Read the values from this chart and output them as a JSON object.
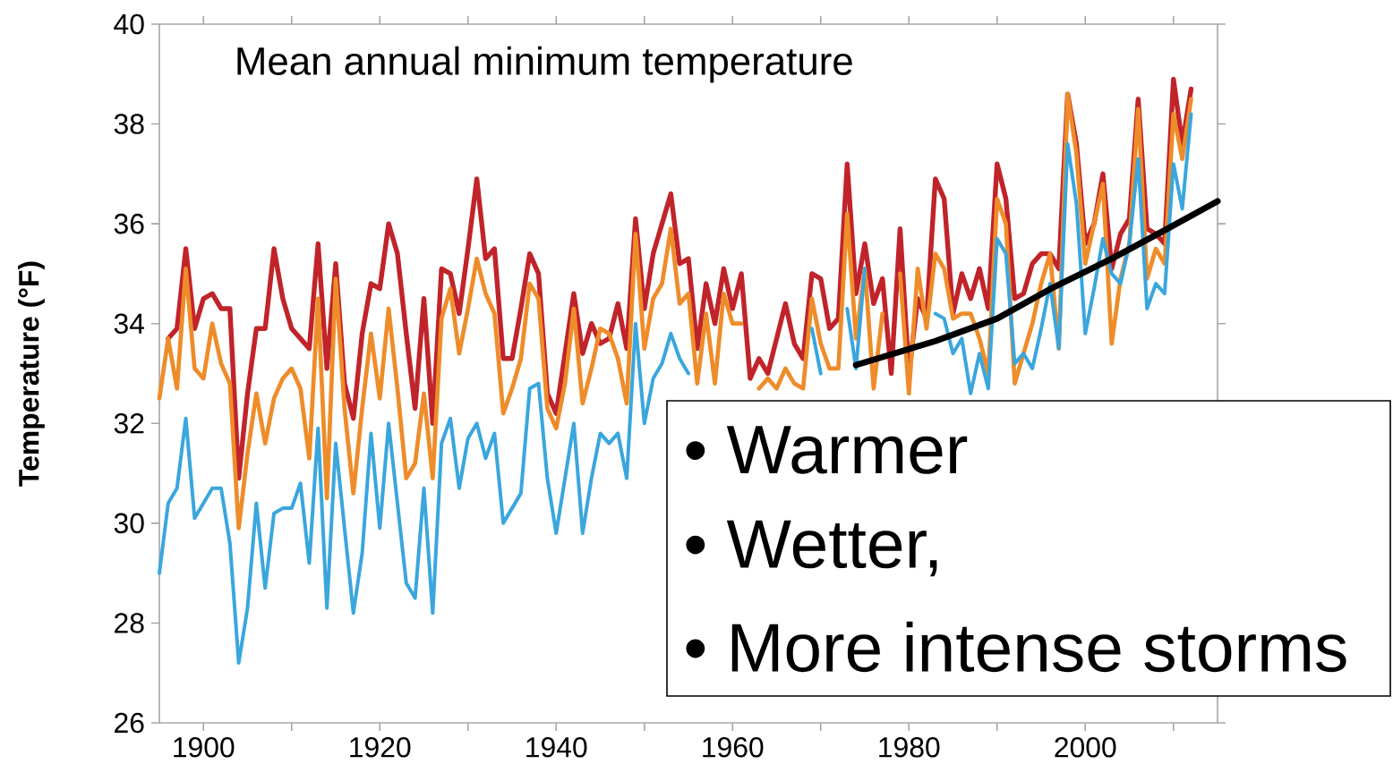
{
  "chart_data": {
    "type": "line",
    "title": "Mean annual minimum temperature",
    "ylabel": "Temperature (°F)",
    "annotations": [
      "• Warmer",
      "• Wetter,",
      "• More intense storms"
    ],
    "x": [
      1895,
      1896,
      1897,
      1898,
      1899,
      1900,
      1901,
      1902,
      1903,
      1904,
      1905,
      1906,
      1907,
      1908,
      1909,
      1910,
      1911,
      1912,
      1913,
      1914,
      1915,
      1916,
      1917,
      1918,
      1919,
      1920,
      1921,
      1922,
      1923,
      1924,
      1925,
      1926,
      1927,
      1928,
      1929,
      1930,
      1931,
      1932,
      1933,
      1934,
      1935,
      1936,
      1937,
      1938,
      1939,
      1940,
      1941,
      1942,
      1943,
      1944,
      1945,
      1946,
      1947,
      1948,
      1949,
      1950,
      1951,
      1952,
      1953,
      1954,
      1955,
      1956,
      1957,
      1958,
      1959,
      1960,
      1961,
      1962,
      1963,
      1964,
      1965,
      1966,
      1967,
      1968,
      1969,
      1970,
      1971,
      1972,
      1973,
      1974,
      1975,
      1976,
      1977,
      1978,
      1979,
      1980,
      1981,
      1982,
      1983,
      1984,
      1985,
      1986,
      1987,
      1988,
      1989,
      1990,
      1991,
      1992,
      1993,
      1994,
      1995,
      1996,
      1997,
      1998,
      1999,
      2000,
      2001,
      2002,
      2003,
      2004,
      2005,
      2006,
      2007,
      2008,
      2009,
      2010,
      2011,
      2012
    ],
    "series": [
      {
        "color": "#c0242a",
        "values": [
          null,
          33.7,
          33.9,
          35.5,
          33.9,
          34.5,
          34.6,
          34.3,
          34.3,
          30.9,
          32.6,
          33.9,
          33.9,
          35.5,
          34.5,
          33.9,
          33.7,
          33.5,
          35.6,
          33.1,
          35.2,
          32.8,
          32.1,
          33.8,
          34.8,
          34.7,
          36.0,
          35.4,
          33.8,
          32.3,
          34.5,
          32.0,
          35.1,
          35.0,
          34.2,
          35.5,
          36.9,
          35.3,
          35.5,
          33.3,
          33.3,
          34.3,
          35.4,
          35.0,
          32.6,
          32.2,
          33.4,
          34.6,
          33.4,
          34.0,
          33.6,
          33.7,
          34.4,
          33.5,
          36.1,
          34.3,
          35.4,
          36.0,
          36.6,
          35.2,
          35.3,
          33.5,
          34.8,
          34.0,
          35.1,
          34.3,
          35.0,
          32.9,
          33.3,
          33.0,
          33.7,
          34.4,
          33.6,
          33.3,
          35.0,
          34.9,
          33.9,
          34.1,
          37.2,
          34.6,
          35.6,
          34.4,
          34.9,
          33.0,
          35.9,
          33.0,
          34.5,
          34.1,
          36.9,
          36.5,
          34.2,
          35.0,
          34.5,
          35.1,
          34.3,
          37.2,
          36.5,
          34.5,
          34.6,
          35.2,
          35.4,
          35.4,
          35.1,
          38.6,
          37.6,
          35.6,
          36.0,
          37.0,
          35.1,
          35.8,
          36.1,
          38.5,
          35.9,
          35.8,
          35.6,
          38.9,
          37.6,
          38.7
        ]
      },
      {
        "color": "#ee8c2a",
        "values": [
          32.5,
          33.7,
          32.7,
          35.1,
          33.1,
          32.9,
          34.0,
          33.2,
          32.8,
          29.9,
          31.4,
          32.6,
          31.6,
          32.5,
          32.9,
          33.1,
          32.7,
          31.3,
          34.5,
          30.5,
          34.9,
          32.3,
          30.6,
          32.3,
          33.8,
          32.5,
          34.3,
          32.7,
          30.9,
          31.2,
          32.6,
          30.9,
          34.1,
          34.7,
          33.4,
          34.3,
          35.3,
          34.6,
          34.2,
          32.2,
          32.7,
          33.3,
          34.8,
          34.5,
          32.3,
          31.9,
          32.8,
          34.3,
          32.4,
          33.1,
          33.9,
          33.8,
          33.3,
          32.4,
          35.8,
          33.5,
          34.5,
          34.8,
          35.9,
          34.4,
          34.6,
          32.8,
          34.2,
          32.8,
          34.6,
          34.0,
          34.0,
          null,
          32.7,
          32.9,
          32.7,
          33.1,
          32.8,
          32.7,
          34.5,
          33.6,
          33.1,
          33.1,
          36.2,
          33.7,
          35.1,
          32.7,
          34.2,
          null,
          35.0,
          32.6,
          35.1,
          33.9,
          35.4,
          35.1,
          34.1,
          34.2,
          34.2,
          33.7,
          33.0,
          36.5,
          36.0,
          32.8,
          33.4,
          34.0,
          34.8,
          35.4,
          33.5,
          38.6,
          37.4,
          35.2,
          36.0,
          36.8,
          33.6,
          34.9,
          35.6,
          38.3,
          34.9,
          35.5,
          35.2,
          38.2,
          37.3,
          38.5
        ]
      },
      {
        "color": "#3aa6dd",
        "values": [
          29.0,
          30.4,
          30.7,
          32.1,
          30.1,
          30.4,
          30.7,
          30.7,
          29.6,
          27.2,
          28.3,
          30.4,
          28.7,
          30.2,
          30.3,
          30.3,
          30.8,
          29.2,
          31.9,
          28.3,
          31.6,
          29.9,
          28.2,
          29.4,
          31.8,
          29.9,
          32.0,
          30.4,
          28.8,
          28.5,
          30.7,
          28.2,
          31.6,
          32.1,
          30.7,
          31.7,
          32.0,
          31.3,
          31.8,
          30.0,
          30.3,
          30.6,
          32.7,
          32.8,
          30.9,
          29.8,
          30.9,
          32.0,
          29.8,
          30.9,
          31.8,
          31.6,
          31.8,
          30.9,
          34.0,
          32.0,
          32.9,
          33.2,
          33.8,
          33.3,
          33.0,
          null,
          null,
          null,
          null,
          null,
          null,
          null,
          null,
          null,
          null,
          null,
          null,
          null,
          33.9,
          33.0,
          null,
          null,
          34.3,
          33.1,
          35.1,
          null,
          null,
          null,
          null,
          null,
          null,
          null,
          34.2,
          34.1,
          33.4,
          33.7,
          32.6,
          33.4,
          32.7,
          35.7,
          35.4,
          33.2,
          33.4,
          33.1,
          33.9,
          34.8,
          33.5,
          37.6,
          36.4,
          33.8,
          34.7,
          35.7,
          35.0,
          34.8,
          35.6,
          37.3,
          34.3,
          34.8,
          34.6,
          37.2,
          36.3,
          38.2
        ]
      },
      {
        "type": "line",
        "color": "#000000",
        "x": [
          1974,
          1983,
          1990,
          1996,
          2003,
          2009,
          2015
        ],
        "values": [
          33.17,
          33.65,
          34.1,
          34.69,
          35.3,
          35.87,
          36.45
        ]
      }
    ],
    "xlim": [
      1895,
      2015
    ],
    "ylim": [
      26,
      40
    ],
    "xticks": [
      1900,
      {
        "value": 1910,
        "label": null
      },
      1920,
      {
        "value": 1930,
        "label": null
      },
      1940,
      {
        "value": 1950,
        "label": null
      },
      1960,
      {
        "value": 1970,
        "label": null
      },
      1980,
      {
        "value": 1990,
        "label": null
      },
      2000,
      {
        "value": 2010,
        "label": null
      }
    ],
    "yticks": [
      26,
      28,
      30,
      32,
      34,
      36,
      38,
      40
    ]
  }
}
